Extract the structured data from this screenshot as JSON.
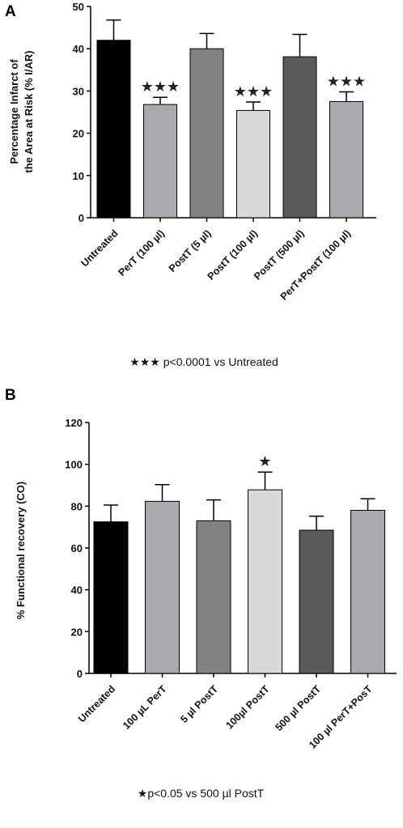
{
  "chart_data": [
    {
      "type": "bar",
      "panel_label": "A",
      "ylabel_lines": [
        "Percentage Infarct of",
        "the Area at Risk (% I/AR)"
      ],
      "ylim": [
        0,
        50
      ],
      "yticks": [
        "0",
        "10",
        "20",
        "30",
        "40",
        "50"
      ],
      "categories": [
        "Untreated",
        "PerT (100 µl)",
        "PostT (5 µl)",
        "PostT (100 µl)",
        "PostT (500 µl)",
        "PerT+PostT (100  µl)"
      ],
      "values": [
        42,
        26.8,
        40,
        25.4,
        38.1,
        27.5
      ],
      "errors": [
        4.8,
        1.7,
        3.6,
        2.0,
        5.3,
        2.3
      ],
      "colors": [
        "#000000",
        "#a9a9ae",
        "#828282",
        "#d8d8d8",
        "#5a5a5a",
        "#a9a9ae"
      ],
      "significance": [
        "",
        "★★★",
        "",
        "★★★",
        "",
        "★★★"
      ],
      "footnote": "★★★ p<0.0001 vs Untreated"
    },
    {
      "type": "bar",
      "panel_label": "B",
      "ylabel_lines": [
        "% Functional recovery (CO)"
      ],
      "ylim": [
        0,
        120
      ],
      "yticks": [
        "0",
        "20",
        "40",
        "60",
        "80",
        "100",
        "120"
      ],
      "categories": [
        "Untreated",
        "100 µL PerT",
        "5 µl PostT",
        "100µl PostT",
        "500 µl PostT",
        "100 µl PerT+PosT"
      ],
      "values": [
        72.5,
        82.3,
        73,
        87.8,
        68.5,
        78
      ],
      "errors": [
        8,
        8,
        10,
        8.5,
        6.7,
        5.5
      ],
      "colors": [
        "#000000",
        "#a9a9ae",
        "#828282",
        "#d8d8d8",
        "#5a5a5a",
        "#a9a9ae"
      ],
      "significance": [
        "",
        "",
        "",
        "★",
        "",
        ""
      ],
      "footnote": "★p<0.05 vs 500 µl PostT"
    }
  ]
}
